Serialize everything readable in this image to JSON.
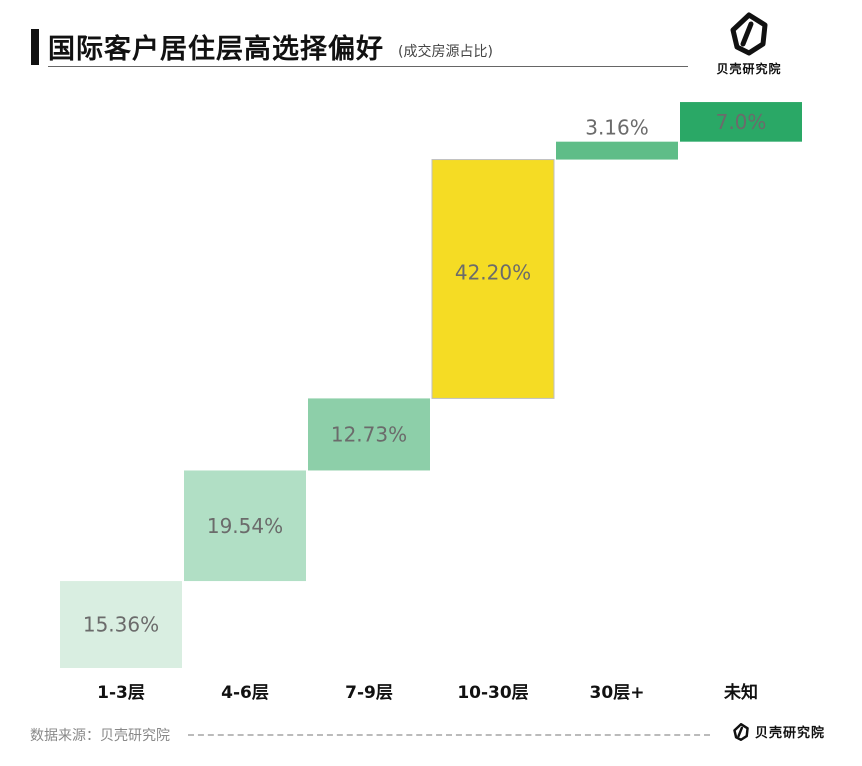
{
  "header": {
    "title": "国际客户居住层高选择偏好",
    "subtitle": "(成交房源占比)",
    "brand": "贝壳研究院"
  },
  "footer": {
    "source": "数据来源：贝壳研究院",
    "brand": "贝壳研究院"
  },
  "colors": {
    "bar_1": "#d9eee1",
    "bar_2": "#b1dfc5",
    "bar_3": "#8dcfa9",
    "bar_4": "#f5dc24",
    "bar_5": "#5fbd88",
    "bar_6": "#2aa866"
  },
  "chart_data": {
    "type": "bar",
    "subtype": "waterfall",
    "categories": [
      "1-3层",
      "4-6层",
      "7-9层",
      "10-30层",
      "30层+",
      "未知"
    ],
    "values": [
      15.36,
      19.54,
      12.73,
      42.2,
      3.16,
      7.0
    ],
    "data_labels": [
      "15.36%",
      "19.54%",
      "12.73%",
      "42.20%",
      "3.16%",
      "7.0%"
    ],
    "ylim": [
      0,
      100
    ],
    "grid": false,
    "legend": "none"
  }
}
